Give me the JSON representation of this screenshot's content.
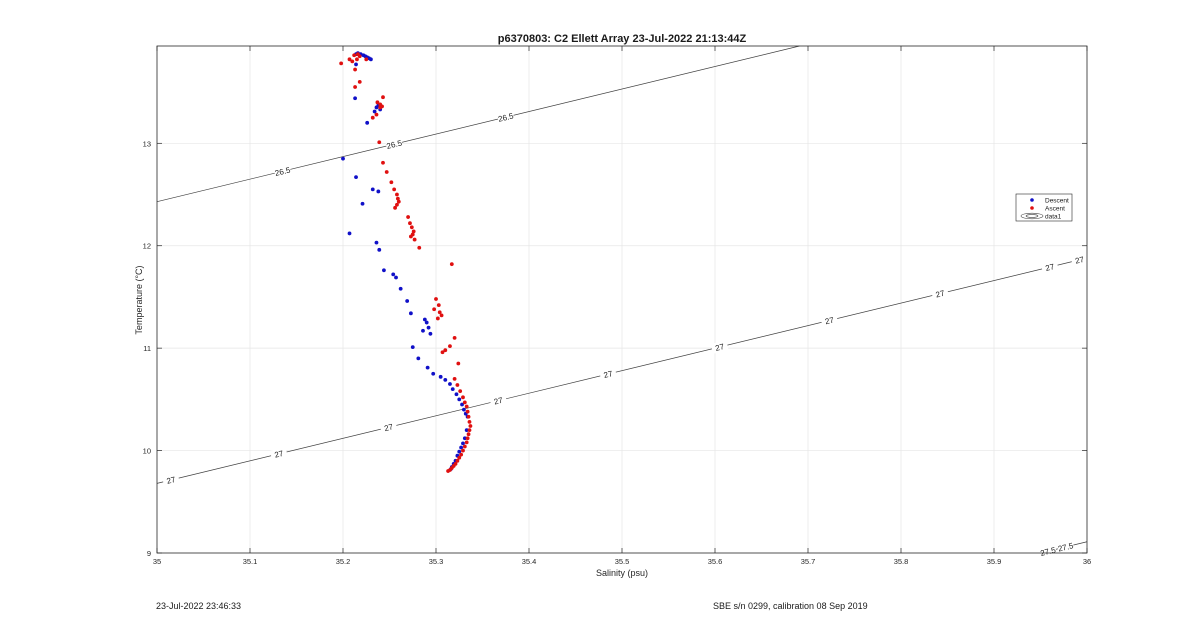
{
  "footer": {
    "left": "23-Jul-2022 23:46:33",
    "right": "SBE s/n 0299, calibration 08 Sep 2019"
  },
  "chart_data": {
    "type": "scatter",
    "title": "p6370803: C2 Ellett Array 23-Jul-2022 21:13:44Z",
    "xlabel": "Salinity (psu)",
    "ylabel": "Temperature (°C)",
    "xlim": [
      35,
      36
    ],
    "ylim": [
      9,
      13.95
    ],
    "xticks": [
      35,
      35.1,
      35.2,
      35.3,
      35.4,
      35.5,
      35.6,
      35.7,
      35.8,
      35.9,
      36
    ],
    "xtick_labels": [
      "35",
      "35.1",
      "35.2",
      "35.3",
      "35.4",
      "35.5",
      "35.6",
      "35.7",
      "35.8",
      "35.9",
      "36"
    ],
    "yticks": [
      9,
      10,
      11,
      12,
      13
    ],
    "ytick_labels": [
      "9",
      "10",
      "11",
      "12",
      "13"
    ],
    "grid": true,
    "legend": {
      "placement": "right",
      "entries": [
        "Descent",
        "Ascent",
        "data1"
      ]
    },
    "colors": {
      "descent": "#1010c8",
      "ascent": "#e01010",
      "contour": "#404040",
      "grid": "#e6e6e6"
    },
    "series": [
      {
        "name": "Descent",
        "x": [
          35.214,
          35.216,
          35.219,
          35.222,
          35.224,
          35.226,
          35.228,
          35.23,
          35.214,
          35.213,
          35.238,
          35.236,
          35.24,
          35.234,
          35.226,
          35.2,
          35.214,
          35.232,
          35.221,
          35.238,
          35.207,
          35.236,
          35.239,
          35.244,
          35.254,
          35.257,
          35.262,
          35.269,
          35.273,
          35.288,
          35.29,
          35.292,
          35.286,
          35.294,
          35.275,
          35.281,
          35.291,
          35.297,
          35.305,
          35.31,
          35.315,
          35.318,
          35.322,
          35.325,
          35.328,
          35.33,
          35.332,
          35.334,
          35.333,
          35.331,
          35.329,
          35.327,
          35.325,
          35.323,
          35.321,
          35.319,
          35.317,
          35.316
        ],
        "y": [
          13.87,
          13.88,
          13.87,
          13.86,
          13.85,
          13.84,
          13.83,
          13.82,
          13.77,
          13.44,
          13.37,
          13.35,
          13.33,
          13.31,
          13.2,
          12.85,
          12.67,
          12.55,
          12.41,
          12.53,
          12.12,
          12.03,
          11.96,
          11.76,
          11.72,
          11.69,
          11.58,
          11.46,
          11.34,
          11.28,
          11.25,
          11.2,
          11.17,
          11.14,
          11.01,
          10.9,
          10.81,
          10.75,
          10.72,
          10.69,
          10.65,
          10.6,
          10.55,
          10.5,
          10.45,
          10.4,
          10.36,
          10.33,
          10.2,
          10.12,
          10.07,
          10.03,
          9.99,
          9.95,
          9.9,
          9.87,
          9.84,
          9.82
        ]
      },
      {
        "name": "Ascent",
        "x": [
          35.212,
          35.216,
          35.218,
          35.215,
          35.21,
          35.207,
          35.198,
          35.213,
          35.225,
          35.218,
          35.213,
          35.237,
          35.24,
          35.243,
          35.24,
          35.236,
          35.232,
          35.242,
          35.239,
          35.243,
          35.247,
          35.252,
          35.255,
          35.258,
          35.259,
          35.26,
          35.258,
          35.256,
          35.27,
          35.272,
          35.274,
          35.276,
          35.273,
          35.277,
          35.275,
          35.282,
          35.3,
          35.303,
          35.298,
          35.306,
          35.302,
          35.304,
          35.317,
          35.32,
          35.315,
          35.31,
          35.307,
          35.324,
          35.32,
          35.323,
          35.326,
          35.329,
          35.331,
          35.333,
          35.334,
          35.335,
          35.336,
          35.337,
          35.336,
          35.335,
          35.334,
          35.333,
          35.331,
          35.329,
          35.327,
          35.325,
          35.323,
          35.321,
          35.319,
          35.317,
          35.315,
          35.313
        ],
        "y": [
          13.86,
          13.87,
          13.85,
          13.82,
          13.8,
          13.82,
          13.78,
          13.72,
          13.82,
          13.6,
          13.55,
          13.4,
          13.38,
          13.45,
          13.35,
          13.28,
          13.25,
          13.36,
          13.01,
          12.81,
          12.72,
          12.62,
          12.55,
          12.5,
          12.46,
          12.43,
          12.4,
          12.37,
          12.28,
          12.22,
          12.18,
          12.14,
          12.09,
          12.06,
          12.11,
          11.98,
          11.48,
          11.42,
          11.38,
          11.32,
          11.29,
          11.35,
          11.82,
          11.1,
          11.02,
          10.98,
          10.96,
          10.85,
          10.7,
          10.64,
          10.58,
          10.52,
          10.47,
          10.43,
          10.38,
          10.33,
          10.28,
          10.24,
          10.2,
          10.16,
          10.12,
          10.08,
          10.04,
          10.0,
          9.96,
          9.93,
          9.9,
          9.87,
          9.85,
          9.83,
          9.81,
          9.8
        ]
      }
    ],
    "contours": [
      {
        "level": "26.5",
        "labels": [
          35.135,
          35.375,
          35.255
        ]
      },
      {
        "level": "27",
        "labels": [
          35.015,
          35.131,
          35.249,
          35.367,
          35.485,
          35.605,
          35.723,
          35.842,
          35.96,
          36.0
        ]
      },
      {
        "level": "27.5",
        "labels": [
          35.508,
          35.622,
          35.743,
          35.859,
          35.977
        ]
      }
    ]
  }
}
